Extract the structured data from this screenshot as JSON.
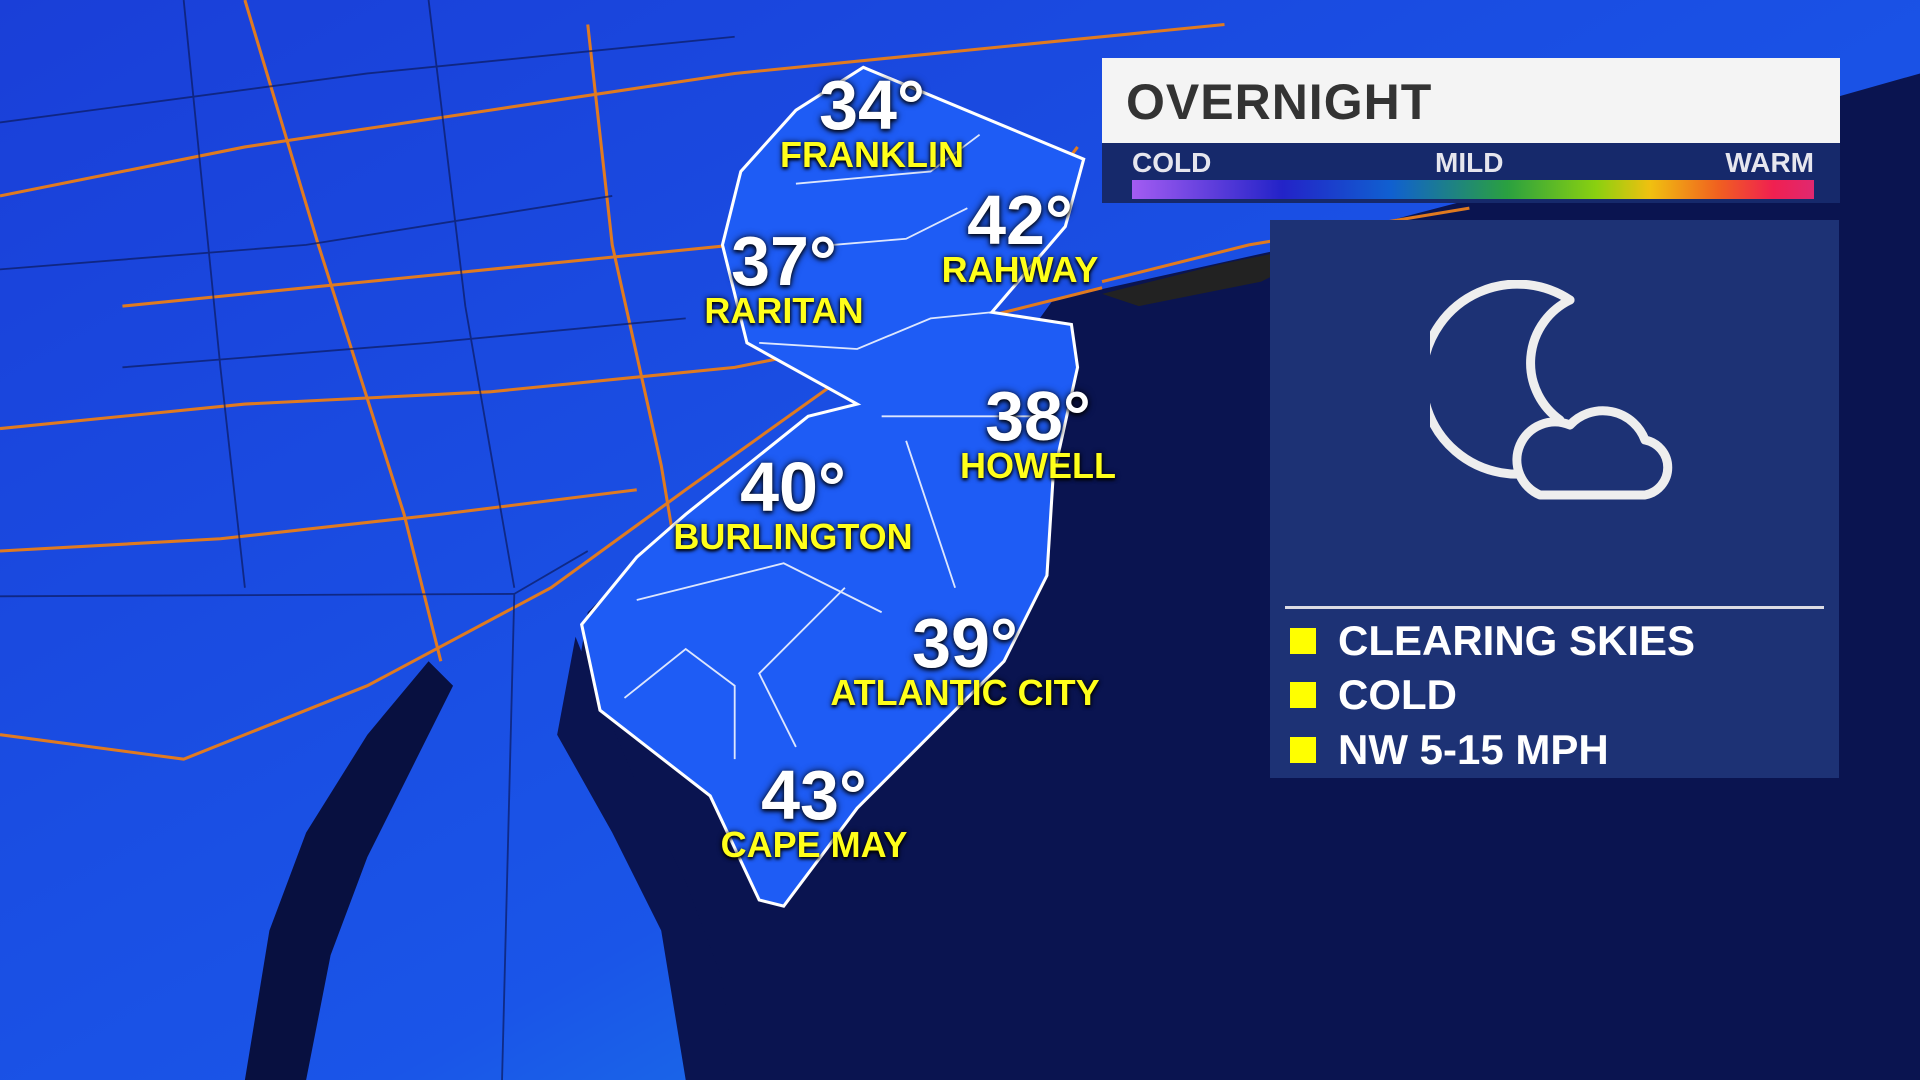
{
  "header": {
    "title": "OVERNIGHT"
  },
  "temperature_scale": {
    "labels": [
      "COLD",
      "MILD",
      "WARM"
    ]
  },
  "cities": [
    {
      "name": "FRANKLIN",
      "temp": "34°"
    },
    {
      "name": "RARITAN",
      "temp": "37°"
    },
    {
      "name": "RAHWAY",
      "temp": "42°"
    },
    {
      "name": "HOWELL",
      "temp": "38°"
    },
    {
      "name": "BURLINGTON",
      "temp": "40°"
    },
    {
      "name": "ATLANTIC CITY",
      "temp": "39°"
    },
    {
      "name": "CAPE MAY",
      "temp": "43°"
    }
  ],
  "conditions": {
    "icon": "moon-cloud-icon",
    "items": [
      "CLEARING SKIES",
      "COLD",
      "NW 5-15 MPH"
    ]
  },
  "colors": {
    "land": "#1a48e0",
    "nj": "#1e5cf5",
    "ocean": "#0a1450",
    "roads": "#e07a20",
    "accent": "#ffff00"
  }
}
